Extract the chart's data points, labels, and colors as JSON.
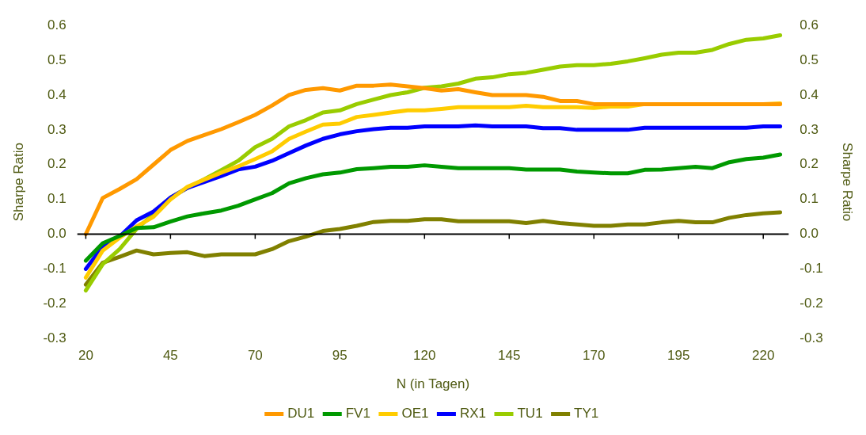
{
  "chart_data": {
    "type": "line",
    "xlabel": "N (in Tagen)",
    "ylabel": "Sharpe Ratio",
    "y2label": "Sharpe Ratio",
    "x": [
      20,
      25,
      30,
      35,
      40,
      45,
      50,
      55,
      60,
      65,
      70,
      75,
      80,
      85,
      90,
      95,
      100,
      105,
      110,
      115,
      120,
      125,
      130,
      135,
      140,
      145,
      150,
      155,
      160,
      165,
      170,
      175,
      180,
      185,
      190,
      195,
      200,
      205,
      210,
      215,
      220,
      225
    ],
    "series": [
      {
        "name": "DU1",
        "color": "#ff9900",
        "values": [
          0,
          0.104,
          0.13,
          0.158,
          0.2,
          0.242,
          0.268,
          0.285,
          0.302,
          0.322,
          0.343,
          0.37,
          0.4,
          0.415,
          0.42,
          0.413,
          0.427,
          0.427,
          0.43,
          0.425,
          0.42,
          0.413,
          0.417,
          0.408,
          0.4,
          0.4,
          0.4,
          0.395,
          0.383,
          0.383,
          0.374,
          0.374,
          0.374,
          0.374,
          0.374,
          0.374,
          0.374,
          0.374,
          0.374,
          0.374,
          0.374,
          0.374
        ]
      },
      {
        "name": "FV1",
        "color": "#009900",
        "values": [
          -0.076,
          -0.026,
          -0.005,
          0.018,
          0.02,
          0.036,
          0.051,
          0.06,
          0.068,
          0.082,
          0.1,
          0.118,
          0.146,
          0.161,
          0.172,
          0.177,
          0.187,
          0.19,
          0.194,
          0.194,
          0.198,
          0.194,
          0.19,
          0.19,
          0.19,
          0.19,
          0.186,
          0.186,
          0.186,
          0.18,
          0.177,
          0.175,
          0.175,
          0.185,
          0.186,
          0.19,
          0.194,
          0.19,
          0.207,
          0.216,
          0.22,
          0.229
        ]
      },
      {
        "name": "OE1",
        "color": "#ffcc00",
        "values": [
          -0.125,
          -0.047,
          -0.01,
          0.022,
          0.05,
          0.1,
          0.136,
          0.157,
          0.177,
          0.195,
          0.216,
          0.238,
          0.274,
          0.295,
          0.315,
          0.318,
          0.337,
          0.343,
          0.35,
          0.356,
          0.356,
          0.36,
          0.365,
          0.365,
          0.365,
          0.365,
          0.369,
          0.365,
          0.365,
          0.365,
          0.363,
          0.367,
          0.367,
          0.374,
          0.374,
          0.374,
          0.374,
          0.374,
          0.374,
          0.374,
          0.374,
          0.376
        ]
      },
      {
        "name": "RX1",
        "color": "#0000ff",
        "values": [
          -0.1,
          -0.036,
          -0.007,
          0.04,
          0.065,
          0.105,
          0.133,
          0.15,
          0.167,
          0.186,
          0.194,
          0.211,
          0.233,
          0.255,
          0.274,
          0.287,
          0.296,
          0.302,
          0.306,
          0.306,
          0.31,
          0.31,
          0.31,
          0.313,
          0.31,
          0.31,
          0.31,
          0.305,
          0.305,
          0.3,
          0.3,
          0.3,
          0.3,
          0.306,
          0.306,
          0.306,
          0.306,
          0.306,
          0.306,
          0.306,
          0.31,
          0.31
        ]
      },
      {
        "name": "TU1",
        "color": "#99cc00",
        "values": [
          -0.162,
          -0.086,
          -0.043,
          0.015,
          0.058,
          0.105,
          0.133,
          0.158,
          0.184,
          0.211,
          0.25,
          0.274,
          0.31,
          0.328,
          0.35,
          0.356,
          0.374,
          0.387,
          0.4,
          0.408,
          0.421,
          0.425,
          0.433,
          0.447,
          0.451,
          0.46,
          0.464,
          0.473,
          0.482,
          0.486,
          0.486,
          0.49,
          0.497,
          0.506,
          0.516,
          0.522,
          0.522,
          0.53,
          0.547,
          0.559,
          0.563,
          0.572
        ]
      },
      {
        "name": "TY1",
        "color": "#808000",
        "values": [
          -0.145,
          -0.082,
          -0.065,
          -0.047,
          -0.058,
          -0.054,
          -0.052,
          -0.063,
          -0.058,
          -0.058,
          -0.058,
          -0.043,
          -0.02,
          -0.007,
          0.009,
          0.015,
          0.024,
          0.035,
          0.038,
          0.038,
          0.043,
          0.043,
          0.037,
          0.037,
          0.037,
          0.037,
          0.032,
          0.038,
          0.032,
          0.028,
          0.024,
          0.024,
          0.028,
          0.028,
          0.034,
          0.038,
          0.034,
          0.034,
          0.047,
          0.055,
          0.06,
          0.063
        ]
      }
    ],
    "xlim": [
      17.5,
      227.5
    ],
    "xticks": [
      20,
      45,
      70,
      95,
      120,
      145,
      170,
      195,
      220
    ],
    "ylim": [
      -0.3,
      0.6
    ],
    "yticks": [
      -0.3,
      -0.2,
      -0.1,
      {
        "value": 0,
        "label": "0.0"
      },
      0.1,
      0.2,
      0.3,
      0.4,
      0.5,
      0.6
    ],
    "y2lim": [
      -0.3,
      0.6
    ],
    "y2ticks": [
      -0.3,
      -0.2,
      -0.1,
      {
        "value": 0,
        "label": "0.0"
      },
      0.1,
      0.2,
      0.3,
      0.4,
      0.5,
      0.6
    ],
    "ref_lines": [
      {
        "axis": "y",
        "value": 0,
        "color": "#000000"
      }
    ],
    "grid": false,
    "legend": "bottom",
    "marker": "none",
    "line_style": "solid"
  }
}
